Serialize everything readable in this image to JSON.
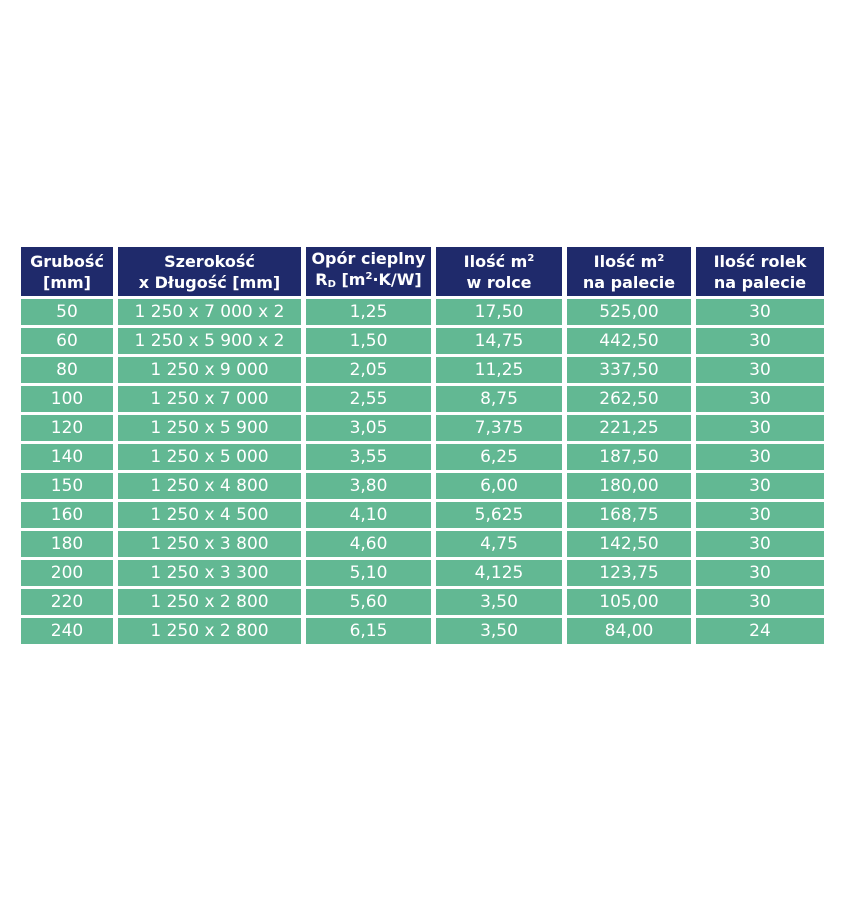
{
  "table": {
    "headers": [
      {
        "line1": "Grubość",
        "line2": "[mm]"
      },
      {
        "line1": "Szerokość",
        "line2": "x Długość [mm]"
      },
      {
        "line1": "Opór cieplny",
        "line2a": "R",
        "line2sub": "D",
        "line2b": " [m",
        "line2sup": "2",
        "line2c": "·K/W]"
      },
      {
        "line1a": "Ilość m",
        "line1sup": "2",
        "line2": "w rolce"
      },
      {
        "line1a": "Ilość m",
        "line1sup": "2",
        "line2": "na palecie"
      },
      {
        "line1": "Ilość rolek",
        "line2": "na palecie"
      }
    ],
    "rows": [
      [
        "50",
        "1 250 x 7 000 x 2",
        "1,25",
        "17,50",
        "525,00",
        "30"
      ],
      [
        "60",
        "1 250 x 5 900 x 2",
        "1,50",
        "14,75",
        "442,50",
        "30"
      ],
      [
        "80",
        "1 250 x 9 000",
        "2,05",
        "11,25",
        "337,50",
        "30"
      ],
      [
        "100",
        "1 250 x 7 000",
        "2,55",
        "8,75",
        "262,50",
        "30"
      ],
      [
        "120",
        "1 250 x 5 900",
        "3,05",
        "7,375",
        "221,25",
        "30"
      ],
      [
        "140",
        "1 250 x 5 000",
        "3,55",
        "6,25",
        "187,50",
        "30"
      ],
      [
        "150",
        "1 250 x 4 800",
        "3,80",
        "6,00",
        "180,00",
        "30"
      ],
      [
        "160",
        "1 250 x 4 500",
        "4,10",
        "5,625",
        "168,75",
        "30"
      ],
      [
        "180",
        "1 250 x 3 800",
        "4,60",
        "4,75",
        "142,50",
        "30"
      ],
      [
        "200",
        "1 250 x 3 300",
        "5,10",
        "4,125",
        "123,75",
        "30"
      ],
      [
        "220",
        "1 250 x 2 800",
        "5,60",
        "3,50",
        "105,00",
        "30"
      ],
      [
        "240",
        "1 250 x 2 800",
        "6,15",
        "3,50",
        "84,00",
        "24"
      ]
    ]
  },
  "colors": {
    "header_bg": "#1f2a6b",
    "row_bg": "#62b893",
    "text": "#ffffff"
  }
}
